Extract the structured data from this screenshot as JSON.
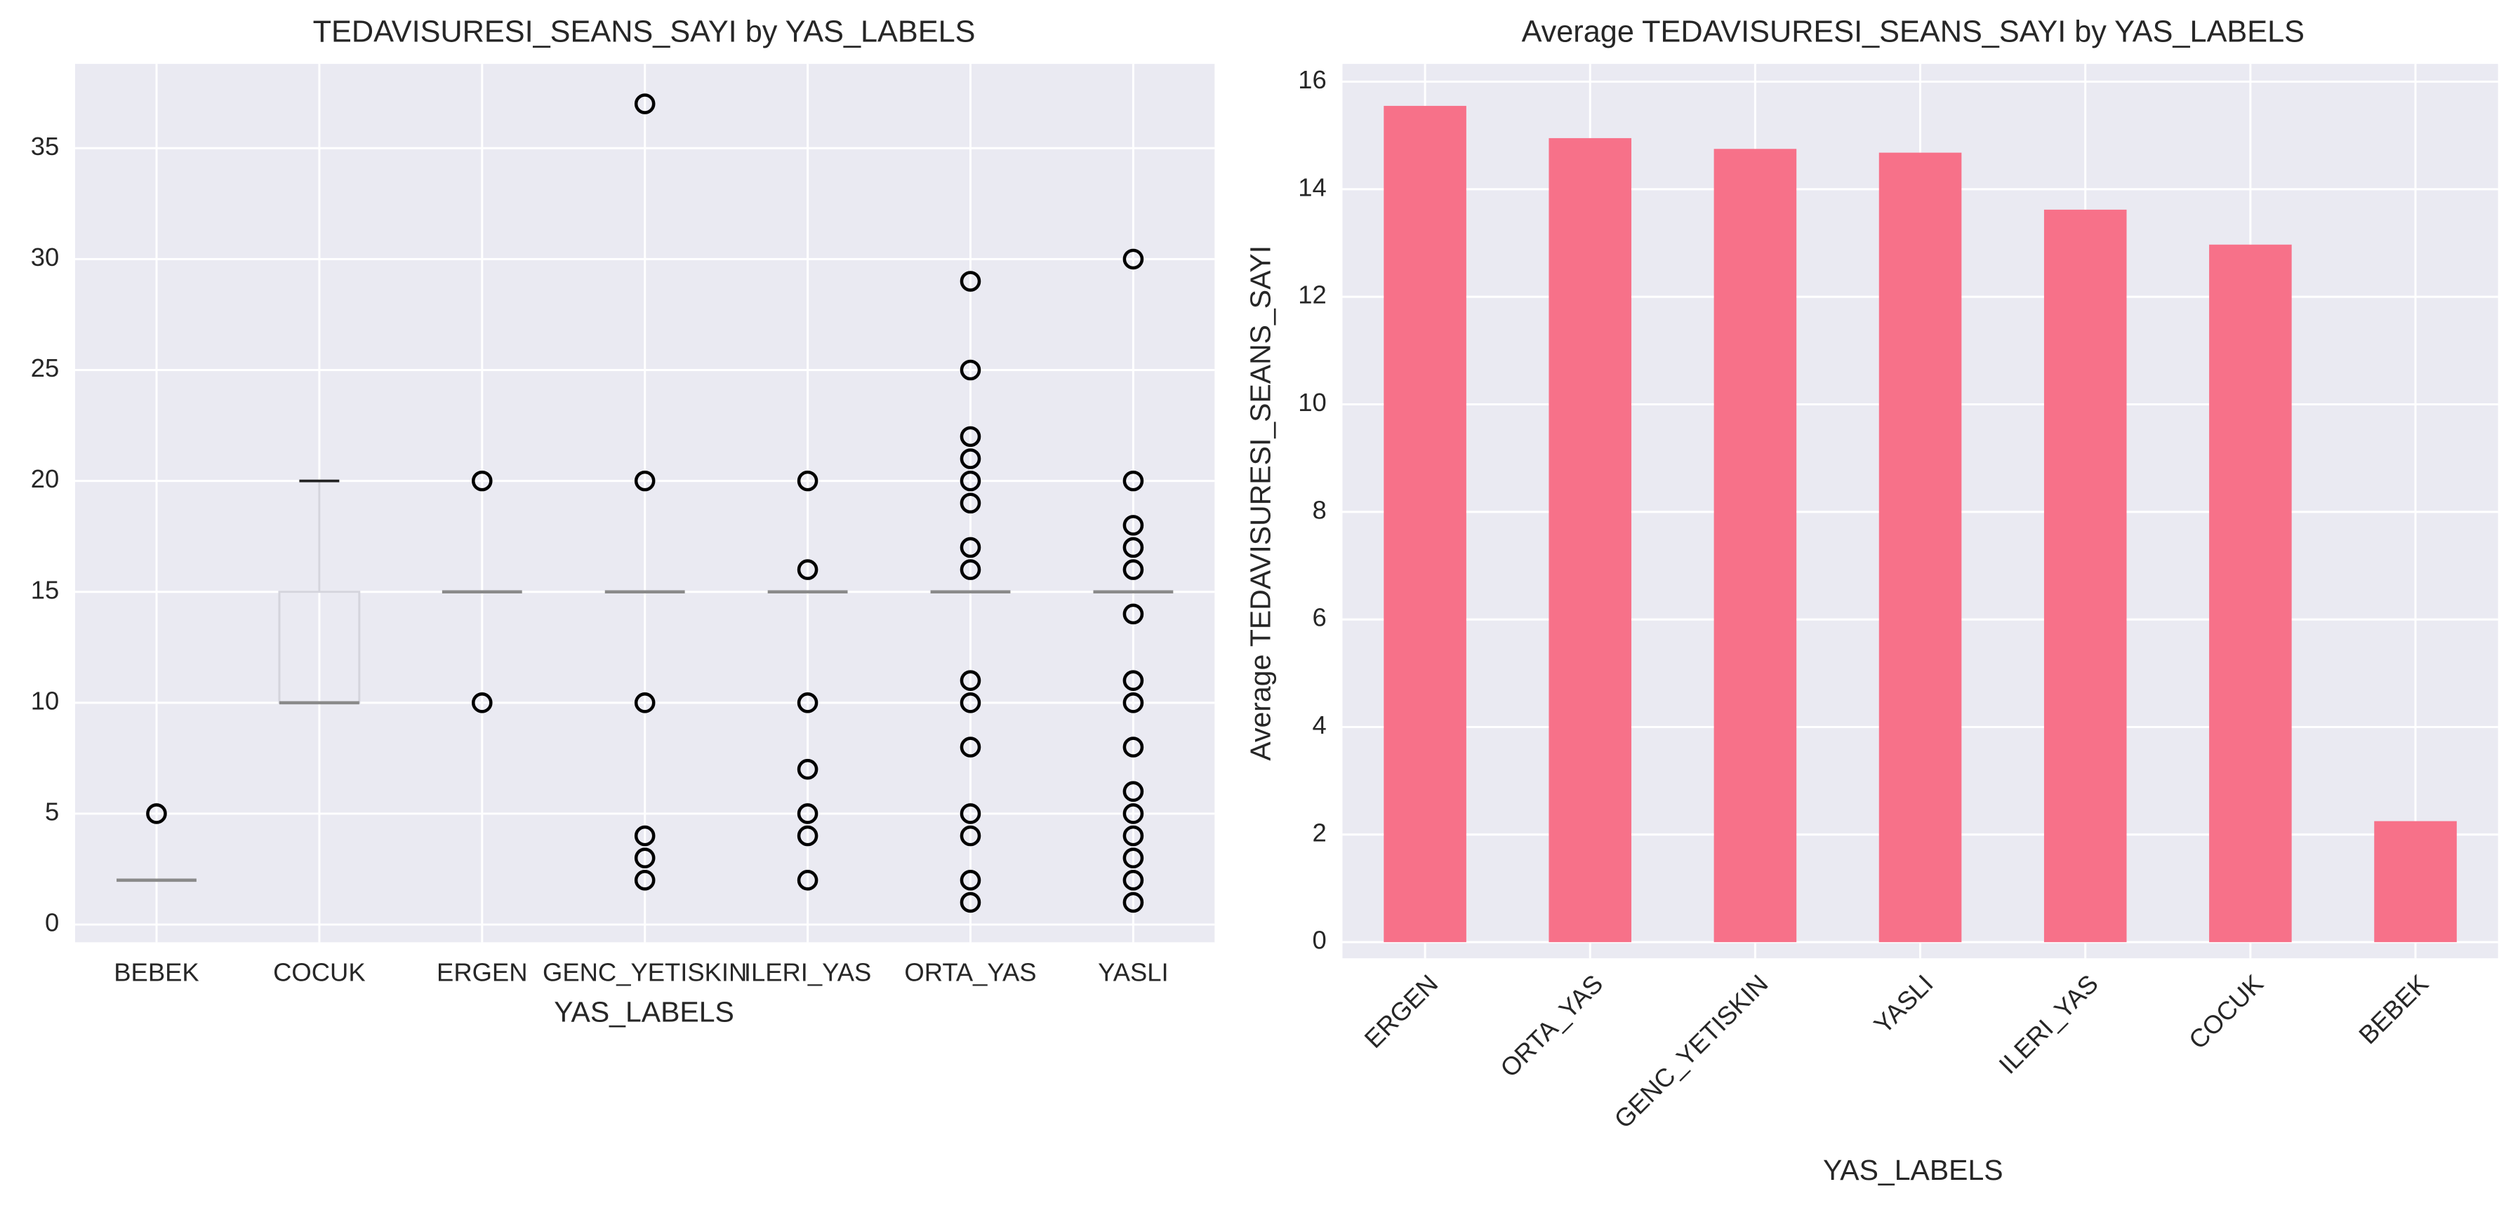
{
  "chart_data": [
    {
      "type": "box",
      "title": "TEDAVISURESI_SEANS_SAYI by YAS_LABELS",
      "x_label": "YAS_LABELS",
      "categories": [
        "BEBEK",
        "COCUK",
        "ERGEN",
        "GENC_YETISKIN",
        "ILERI_YAS",
        "ORTA_YAS",
        "YASLI"
      ],
      "boxes": [
        {
          "whisker_low": 2,
          "q1": 2,
          "median": 2,
          "q3": 2,
          "whisker_high": 2,
          "outliers": [
            5
          ]
        },
        {
          "whisker_low": 10,
          "q1": 10,
          "median": 10,
          "q3": 15,
          "whisker_high": 20,
          "outliers": []
        },
        {
          "whisker_low": 15,
          "q1": 15,
          "median": 15,
          "q3": 15,
          "whisker_high": 15,
          "outliers": [
            10,
            20
          ]
        },
        {
          "whisker_low": 15,
          "q1": 15,
          "median": 15,
          "q3": 15,
          "whisker_high": 15,
          "outliers": [
            2,
            3,
            4,
            10,
            20,
            37
          ]
        },
        {
          "whisker_low": 15,
          "q1": 15,
          "median": 15,
          "q3": 15,
          "whisker_high": 15,
          "outliers": [
            2,
            4,
            5,
            7,
            10,
            16,
            20
          ]
        },
        {
          "whisker_low": 15,
          "q1": 15,
          "median": 15,
          "q3": 15,
          "whisker_high": 15,
          "outliers": [
            1,
            2,
            4,
            5,
            8,
            10,
            11,
            16,
            17,
            19,
            20,
            21,
            22,
            25,
            29
          ]
        },
        {
          "whisker_low": 15,
          "q1": 15,
          "median": 15,
          "q3": 15,
          "whisker_high": 15,
          "outliers": [
            1,
            2,
            3,
            4,
            5,
            6,
            8,
            10,
            11,
            14,
            16,
            17,
            18,
            20,
            30
          ]
        }
      ],
      "ylim": [
        -0.8,
        38.8
      ],
      "yticks": [
        0,
        5,
        10,
        15,
        20,
        25,
        30,
        35
      ],
      "grid": true
    },
    {
      "type": "bar",
      "title": "Average TEDAVISURESI_SEANS_SAYI by YAS_LABELS",
      "x_label": "YAS_LABELS",
      "y_label": "Average TEDAVISURESI_SEANS_SAYI",
      "categories": [
        "ERGEN",
        "ORTA_YAS",
        "GENC_YETISKIN",
        "YASLI",
        "ILERI_YAS",
        "COCUK",
        "BEBEK"
      ],
      "values": [
        15.55,
        14.95,
        14.75,
        14.68,
        13.62,
        12.97,
        2.25
      ],
      "color": "#f77189",
      "ylim": [
        -0.3,
        16.33
      ],
      "yticks": [
        0,
        2,
        4,
        6,
        8,
        10,
        12,
        14,
        16
      ],
      "grid": true
    }
  ]
}
